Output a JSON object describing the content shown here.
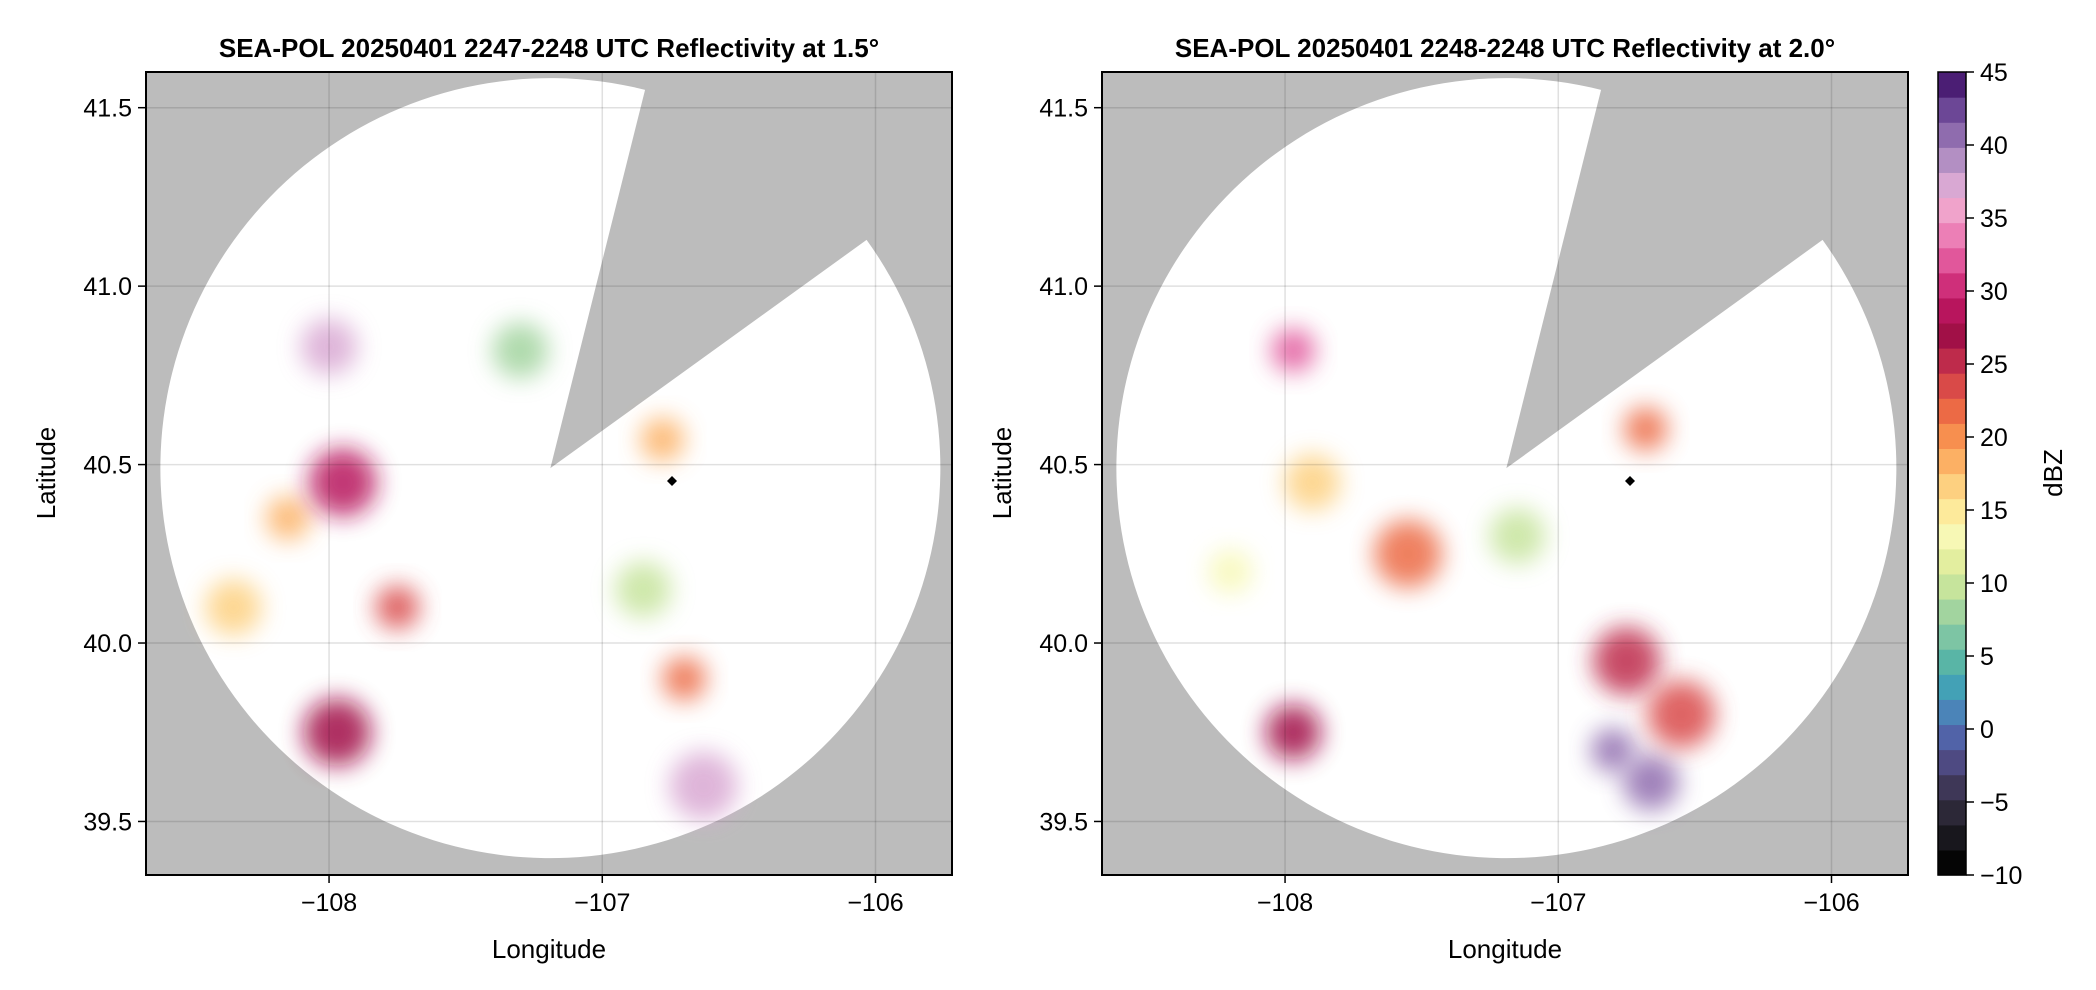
{
  "chart_data": [
    {
      "type": "heatmap",
      "title": "SEA-POL 20250401 2247-2248 UTC Reflectivity at 1.5°",
      "xlabel": "Longitude",
      "ylabel": "Latitude",
      "xlim": [
        -108.67,
        -105.72
      ],
      "ylim": [
        39.35,
        41.6
      ],
      "xticks": [
        -108,
        -107,
        -106
      ],
      "xtick_labels": [
        "−108",
        "−107",
        "−106"
      ],
      "yticks": [
        39.5,
        40.0,
        40.5,
        41.0,
        41.5
      ],
      "ytick_labels": [
        "39.5",
        "40.0",
        "40.5",
        "41.0",
        "41.5"
      ],
      "grid": true,
      "radar_center": [
        -107.19,
        40.49
      ],
      "no_data_color": "#bcbcbc",
      "coverage_color": "#ffffff",
      "blocked_sectors_lonlat": [
        [
          [
            -107.19,
            40.49
          ],
          [
            -106.85,
            41.53
          ]
        ],
        [
          [
            -107.19,
            40.49
          ],
          [
            -106.05,
            41.12
          ]
        ]
      ],
      "echo_regions": [
        {
          "lon": -108.15,
          "lat": 40.35,
          "dbz": 18
        },
        {
          "lon": -108.35,
          "lat": 40.1,
          "dbz": 16
        },
        {
          "lon": -107.95,
          "lat": 40.45,
          "dbz": 28
        },
        {
          "lon": -107.75,
          "lat": 40.1,
          "dbz": 24
        },
        {
          "lon": -108.0,
          "lat": 40.83,
          "dbz": 38
        },
        {
          "lon": -107.97,
          "lat": 39.75,
          "dbz": 27
        },
        {
          "lon": -106.7,
          "lat": 39.9,
          "dbz": 22
        },
        {
          "lon": -106.85,
          "lat": 40.15,
          "dbz": 10
        },
        {
          "lon": -106.63,
          "lat": 39.6,
          "dbz": 38
        },
        {
          "lon": -106.78,
          "lat": 40.57,
          "dbz": 18
        },
        {
          "lon": -107.3,
          "lat": 40.82,
          "dbz": 8
        }
      ]
    },
    {
      "type": "heatmap",
      "title": "SEA-POL 20250401 2248-2248 UTC Reflectivity at 2.0°",
      "xlabel": "Longitude",
      "ylabel": "Latitude",
      "xlim": [
        -108.67,
        -105.72
      ],
      "ylim": [
        39.35,
        41.6
      ],
      "xticks": [
        -108,
        -107,
        -106
      ],
      "xtick_labels": [
        "−108",
        "−107",
        "−106"
      ],
      "yticks": [
        39.5,
        40.0,
        40.5,
        41.0,
        41.5
      ],
      "ytick_labels": [
        "39.5",
        "40.0",
        "40.5",
        "41.0",
        "41.5"
      ],
      "grid": true,
      "radar_center": [
        -107.19,
        40.49
      ],
      "no_data_color": "#bcbcbc",
      "coverage_color": "#ffffff",
      "blocked_sectors_lonlat": [
        [
          [
            -107.19,
            40.49
          ],
          [
            -106.85,
            41.53
          ]
        ],
        [
          [
            -107.19,
            40.49
          ],
          [
            -106.05,
            41.12
          ]
        ]
      ],
      "echo_regions": [
        {
          "lon": -108.2,
          "lat": 40.2,
          "dbz": 14
        },
        {
          "lon": -107.9,
          "lat": 40.45,
          "dbz": 17
        },
        {
          "lon": -107.55,
          "lat": 40.25,
          "dbz": 22
        },
        {
          "lon": -107.97,
          "lat": 40.82,
          "dbz": 32
        },
        {
          "lon": -107.97,
          "lat": 39.75,
          "dbz": 27
        },
        {
          "lon": -106.75,
          "lat": 39.95,
          "dbz": 26
        },
        {
          "lon": -106.8,
          "lat": 39.7,
          "dbz": 40
        },
        {
          "lon": -106.66,
          "lat": 39.61,
          "dbz": 40
        },
        {
          "lon": -106.55,
          "lat": 39.8,
          "dbz": 24
        },
        {
          "lon": -106.68,
          "lat": 40.6,
          "dbz": 22
        },
        {
          "lon": -107.15,
          "lat": 40.3,
          "dbz": 10
        }
      ]
    }
  ],
  "colorbar": {
    "label": "dBZ",
    "min": -10,
    "max": 45,
    "ticks": [
      -10,
      -5,
      0,
      5,
      10,
      15,
      20,
      25,
      30,
      35,
      40,
      45
    ],
    "tick_labels": [
      "−10",
      "−5",
      "0",
      "5",
      "10",
      "15",
      "20",
      "25",
      "30",
      "35",
      "40",
      "45"
    ],
    "colors": [
      "#050505",
      "#18171d",
      "#2c2837",
      "#3e3757",
      "#4e4a82",
      "#5163a8",
      "#4b84b8",
      "#43a1b6",
      "#59b5a6",
      "#7dc5a4",
      "#a2d49f",
      "#c6e49c",
      "#e3ee9f",
      "#f7f8b5",
      "#fdea9b",
      "#fdd080",
      "#fcb064",
      "#f78f4f",
      "#ec6a45",
      "#d94a48",
      "#be2b4b",
      "#a11047",
      "#b8155d",
      "#cf2f7a",
      "#e1579b",
      "#ec7fb6",
      "#f0a3cb",
      "#d9a8d3",
      "#b38fc3",
      "#8f6cae",
      "#6c4796",
      "#4b1e74"
    ]
  }
}
